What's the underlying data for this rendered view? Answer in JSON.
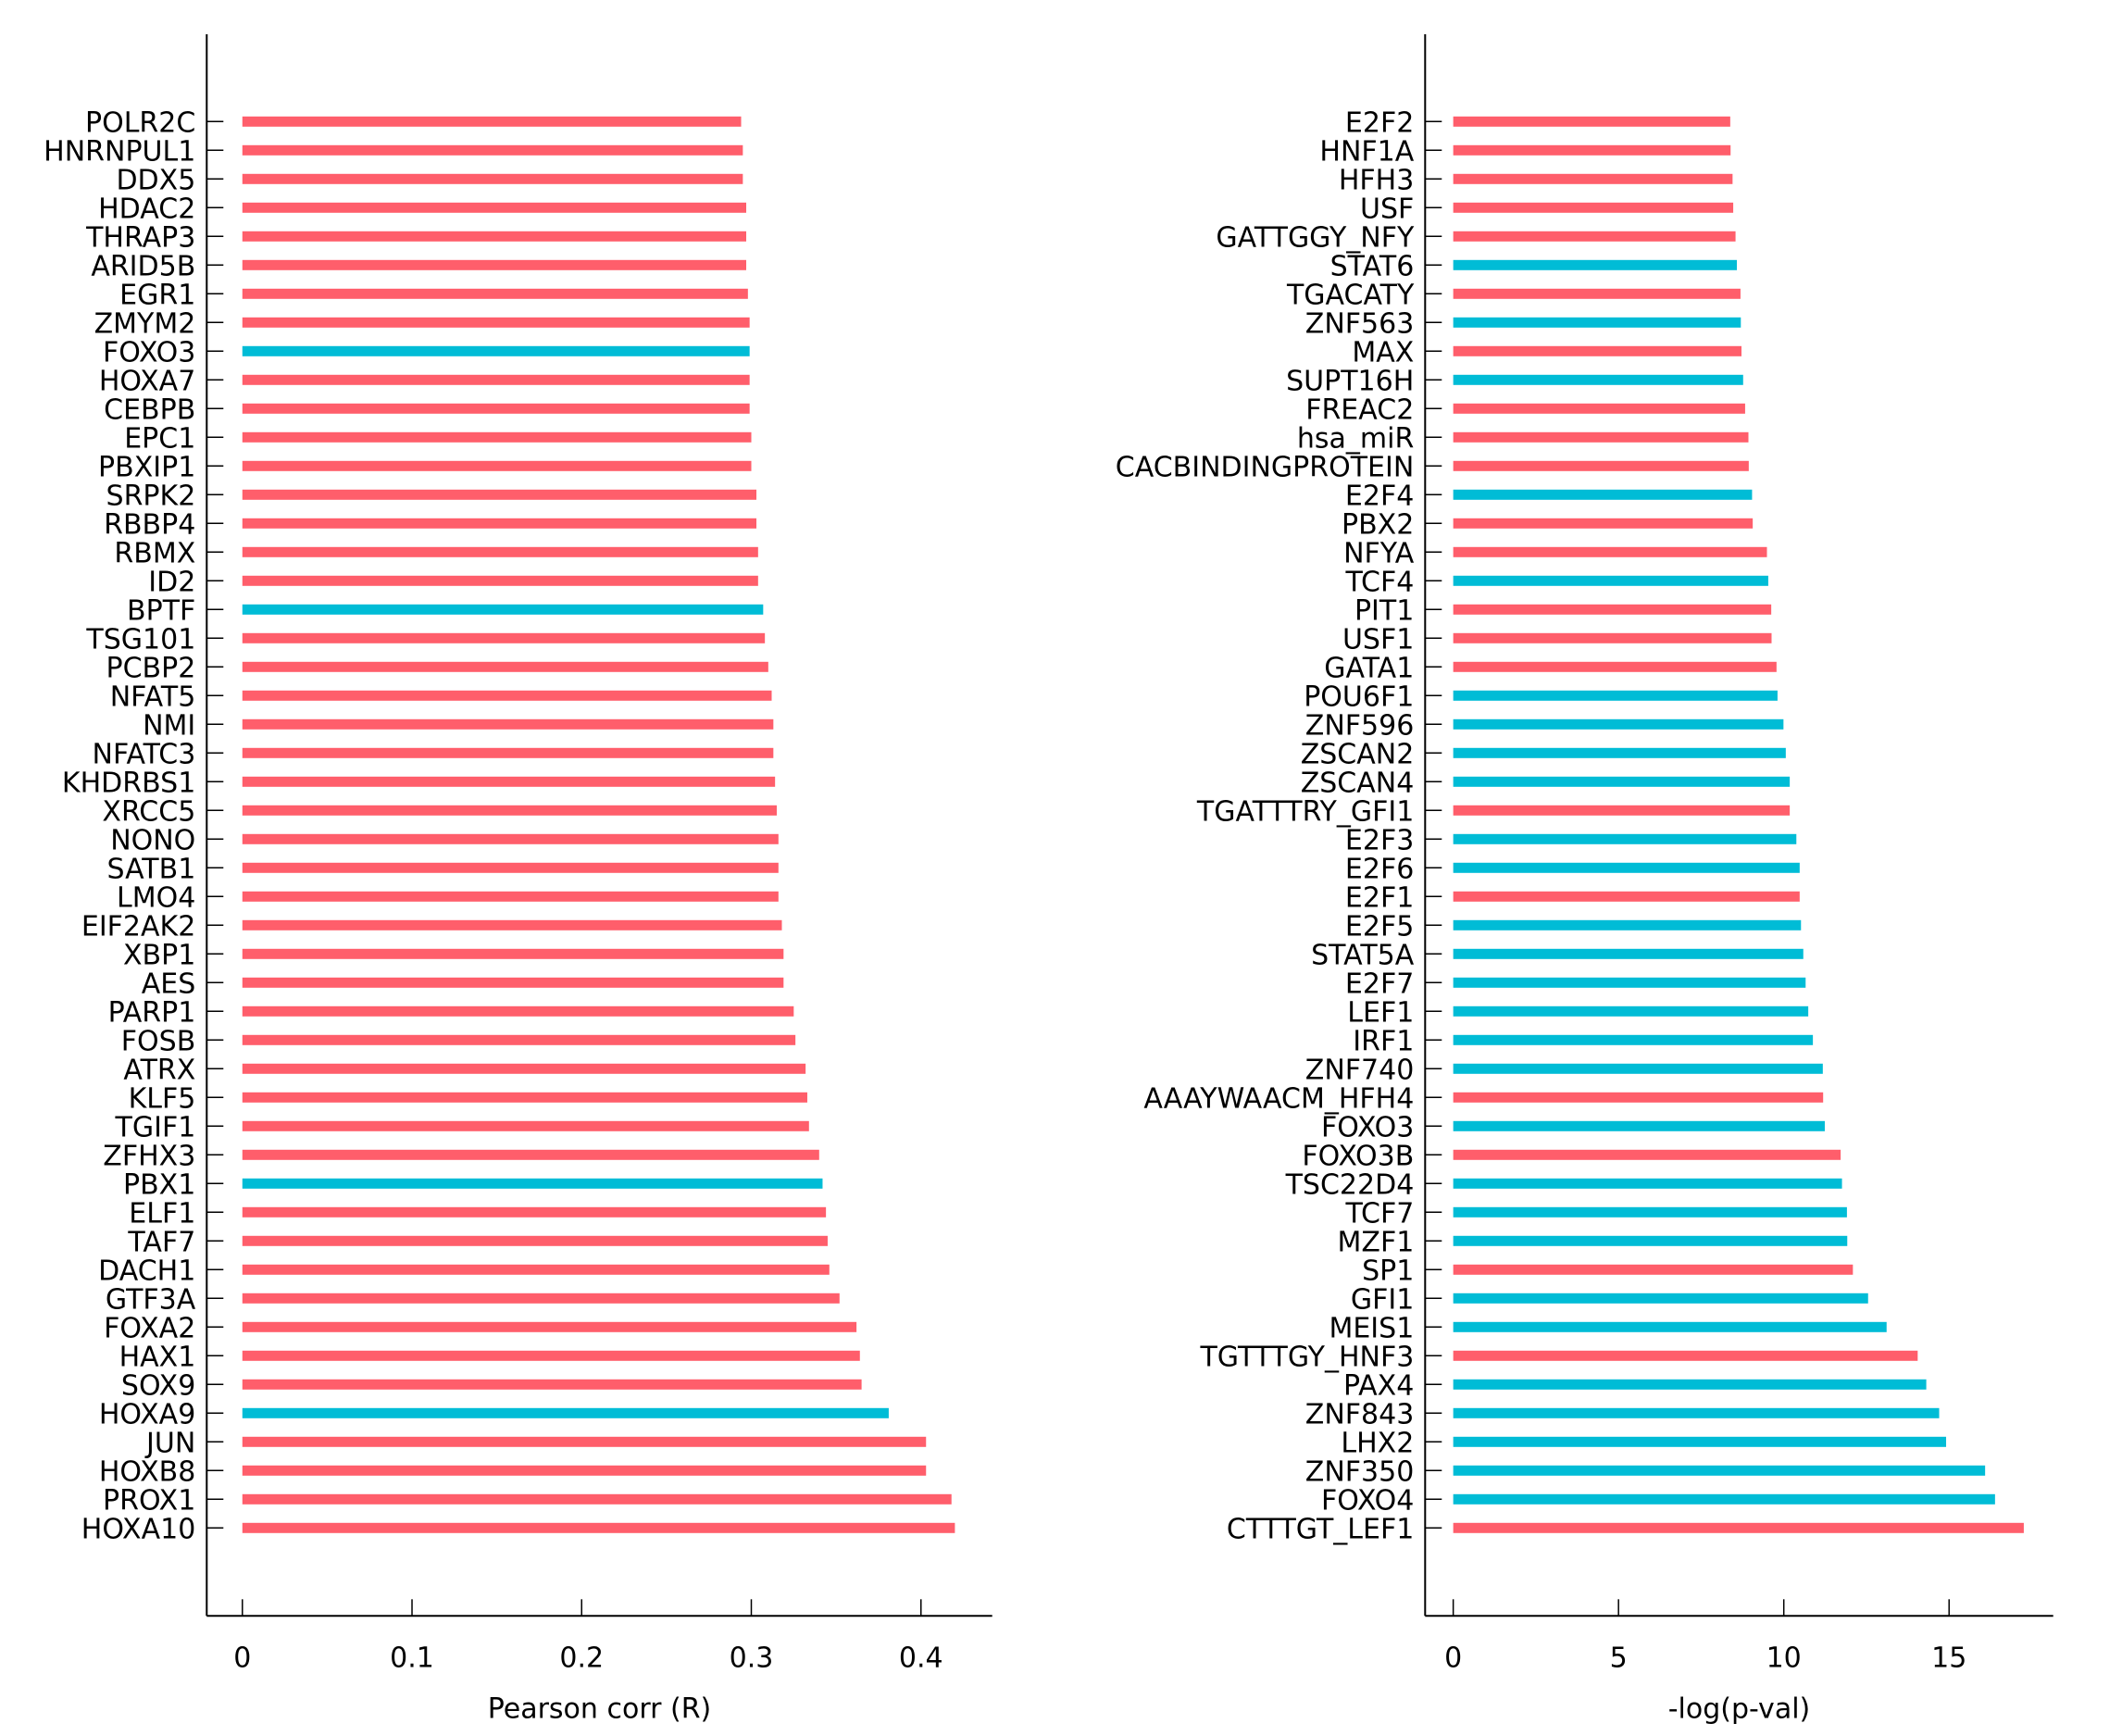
{
  "colors": {
    "positive": "#FF5E6B",
    "negative": "#00BCD6",
    "axis": "#000000"
  },
  "chart_data": [
    {
      "type": "bar",
      "orientation": "horizontal",
      "xlabel": "Pearson corr (R)",
      "ylabel": "",
      "xlim": [
        -0.021,
        0.442
      ],
      "xticks": [
        0,
        0.1,
        0.2,
        0.3,
        0.4
      ],
      "xtick_labels": [
        "0",
        "0.1",
        "0.2",
        "0.3",
        "0.4"
      ],
      "grid": false,
      "legend": "none",
      "categories": [
        "POLR2C",
        "HNRNPUL1",
        "DDX5",
        "HDAC2",
        "THRAP3",
        "ARID5B",
        "EGR1",
        "ZMYM2",
        "FOXO3",
        "HOXA7",
        "CEBPB",
        "EPC1",
        "PBXIP1",
        "SRPK2",
        "RBBP4",
        "RBMX",
        "ID2",
        "BPTF",
        "TSG101",
        "PCBP2",
        "NFAT5",
        "NMI",
        "NFATC3",
        "KHDRBS1",
        "XRCC5",
        "NONO",
        "SATB1",
        "LMO4",
        "EIF2AK2",
        "XBP1",
        "AES",
        "PARP1",
        "FOSB",
        "ATRX",
        "KLF5",
        "TGIF1",
        "ZFHX3",
        "PBX1",
        "ELF1",
        "TAF7",
        "DACH1",
        "GTF3A",
        "FOXA2",
        "HAX1",
        "SOX9",
        "HOXA9",
        "JUN",
        "HOXB8",
        "PROX1",
        "HOXA10"
      ],
      "values": [
        0.294,
        0.295,
        0.295,
        0.297,
        0.297,
        0.297,
        0.298,
        0.299,
        0.299,
        0.299,
        0.299,
        0.3,
        0.3,
        0.303,
        0.303,
        0.304,
        0.304,
        0.307,
        0.308,
        0.31,
        0.312,
        0.313,
        0.313,
        0.314,
        0.315,
        0.316,
        0.316,
        0.316,
        0.318,
        0.319,
        0.319,
        0.325,
        0.326,
        0.332,
        0.333,
        0.334,
        0.34,
        0.342,
        0.344,
        0.345,
        0.346,
        0.352,
        0.362,
        0.364,
        0.365,
        0.381,
        0.403,
        0.403,
        0.418,
        0.42
      ],
      "groups": [
        "pos",
        "pos",
        "pos",
        "pos",
        "pos",
        "pos",
        "pos",
        "pos",
        "neg",
        "pos",
        "pos",
        "pos",
        "pos",
        "pos",
        "pos",
        "pos",
        "pos",
        "neg",
        "pos",
        "pos",
        "pos",
        "pos",
        "pos",
        "pos",
        "pos",
        "pos",
        "pos",
        "pos",
        "pos",
        "pos",
        "pos",
        "pos",
        "pos",
        "pos",
        "pos",
        "pos",
        "pos",
        "neg",
        "pos",
        "pos",
        "pos",
        "pos",
        "pos",
        "pos",
        "pos",
        "neg",
        "pos",
        "pos",
        "pos",
        "pos"
      ]
    },
    {
      "type": "bar",
      "orientation": "horizontal",
      "xlabel": "-log(p-val)",
      "ylabel": "",
      "xlim": [
        -0.85,
        18.15
      ],
      "xticks": [
        0,
        5,
        10,
        15
      ],
      "xtick_labels": [
        "0",
        "5",
        "10",
        "15"
      ],
      "grid": false,
      "legend": "none",
      "categories": [
        "E2F2",
        "HNF1A",
        "HFH3",
        "USF",
        "GATTGGY_NFY",
        "STAT6",
        "TGACATY",
        "ZNF563",
        "MAX",
        "SUPT16H",
        "FREAC2",
        "hsa_miR",
        "CACBINDINGPROTEIN",
        "E2F4",
        "PBX2",
        "NFYA",
        "TCF4",
        "PIT1",
        "USF1",
        "GATA1",
        "POU6F1",
        "ZNF596",
        "ZSCAN2",
        "ZSCAN4",
        "TGATTTRY_GFI1",
        "E2F3",
        "E2F6",
        "E2F1",
        "E2F5",
        "STAT5A",
        "E2F7",
        "LEF1",
        "IRF1",
        "ZNF740",
        "AAAYWAACM_HFH4",
        "FOXO3",
        "FOXO3B",
        "TSC22D4",
        "TCF7",
        "MZF1",
        "SP1",
        "GFI1",
        "MEIS1",
        "TGTTTGY_HNF3",
        "PAX4",
        "ZNF843",
        "LHX2",
        "ZNF350",
        "FOXO4",
        "CTTTGT_LEF1"
      ],
      "values": [
        8.38,
        8.39,
        8.45,
        8.47,
        8.54,
        8.58,
        8.69,
        8.7,
        8.72,
        8.77,
        8.83,
        8.93,
        8.94,
        9.04,
        9.06,
        9.49,
        9.53,
        9.62,
        9.63,
        9.78,
        9.81,
        9.99,
        10.06,
        10.18,
        10.18,
        10.38,
        10.48,
        10.48,
        10.52,
        10.59,
        10.66,
        10.74,
        10.88,
        11.18,
        11.19,
        11.24,
        11.72,
        11.76,
        11.91,
        11.92,
        12.09,
        12.55,
        13.11,
        14.05,
        14.31,
        14.7,
        14.91,
        16.09,
        16.39,
        17.26
      ],
      "groups": [
        "pos",
        "pos",
        "pos",
        "pos",
        "pos",
        "neg",
        "pos",
        "neg",
        "pos",
        "neg",
        "pos",
        "pos",
        "pos",
        "neg",
        "pos",
        "pos",
        "neg",
        "pos",
        "pos",
        "pos",
        "neg",
        "neg",
        "neg",
        "neg",
        "pos",
        "neg",
        "neg",
        "pos",
        "neg",
        "neg",
        "neg",
        "neg",
        "neg",
        "neg",
        "pos",
        "neg",
        "pos",
        "neg",
        "neg",
        "neg",
        "pos",
        "neg",
        "neg",
        "pos",
        "neg",
        "neg",
        "neg",
        "neg",
        "neg",
        "pos"
      ]
    }
  ]
}
